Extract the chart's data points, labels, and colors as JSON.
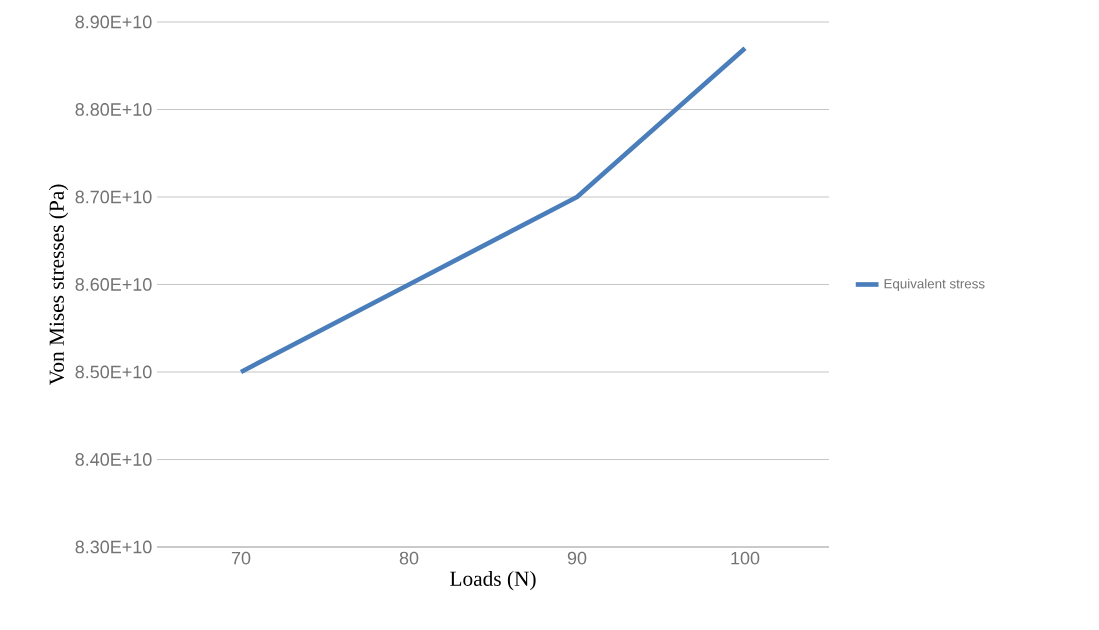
{
  "chart_data": {
    "type": "line",
    "xlabel": "Loads (N)",
    "ylabel": "Von Mises stresses (Pa)",
    "categories": [
      "70",
      "80",
      "90",
      "100"
    ],
    "series": [
      {
        "name": "Equivalent stress",
        "color": "#4a7ebb",
        "values": [
          85000000000,
          86000000000,
          87000000000,
          88700000000
        ]
      }
    ],
    "ylim": [
      83000000000,
      89000000000
    ],
    "yticks": [
      {
        "value": 83000000000,
        "label": "8.30E+10"
      },
      {
        "value": 84000000000,
        "label": "8.40E+10"
      },
      {
        "value": 85000000000,
        "label": "8.50E+10"
      },
      {
        "value": 86000000000,
        "label": "8.60E+10"
      },
      {
        "value": 87000000000,
        "label": "8.70E+10"
      },
      {
        "value": 88000000000,
        "label": "8.80E+10"
      },
      {
        "value": 89000000000,
        "label": "8.90E+10"
      }
    ],
    "grid": "y",
    "legend": "right"
  }
}
